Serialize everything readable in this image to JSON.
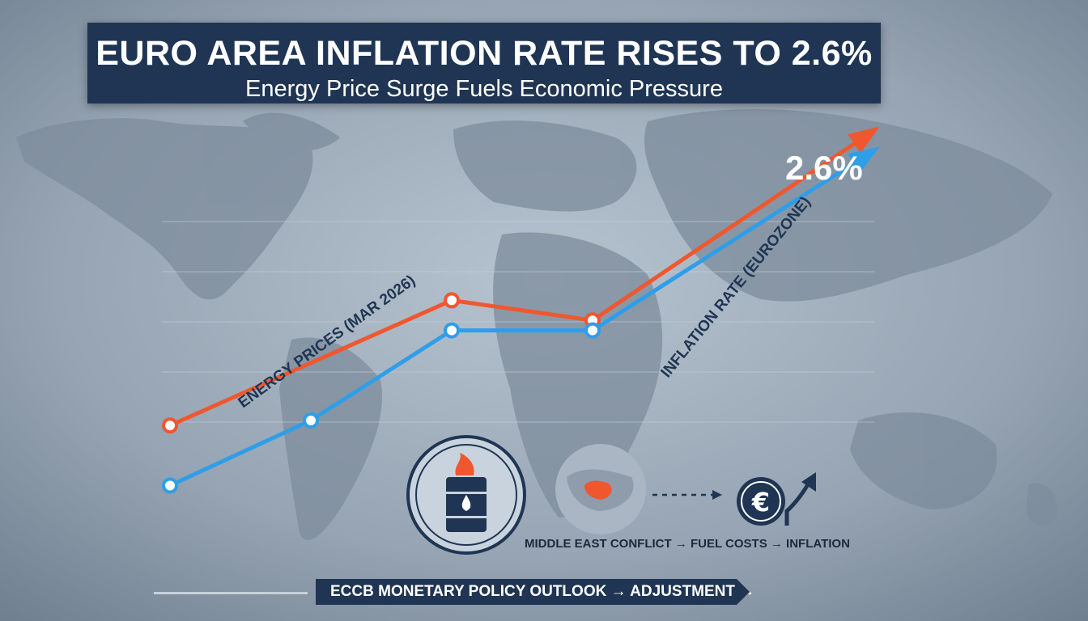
{
  "title": "EURO AREA INFLATION RATE RISES TO 2.6%",
  "subtitle": "Energy Price Surge Fuels Economic Pressure",
  "value_label": "2.6%",
  "causal_chain": "MIDDLE EAST CONFLICT → FUEL COSTS → INFLATION",
  "footer": "ECCB MONETARY POLICY OUTLOOK → ADJUSTMENT →",
  "icons": {
    "barrel": "oil-barrel-icon",
    "map": "region-map-icon",
    "euro": "euro-icon"
  },
  "colors": {
    "energy": "#f0572e",
    "inflation": "#2f9ee8",
    "panel": "#1f3553"
  },
  "chart_data": {
    "type": "line",
    "x": [
      0,
      1,
      2,
      3,
      4,
      5
    ],
    "grid": true,
    "legend": "inline-labels",
    "series": [
      {
        "name": "ENERGY PRICES (MAR 2026)",
        "color": "#f0572e",
        "values": [
          1.0,
          2.25,
          2.05,
          3.95
        ],
        "x": [
          0,
          2,
          3,
          5
        ]
      },
      {
        "name": "INFLATION RATE (EUROZONE)",
        "color": "#2f9ee8",
        "values": [
          0.4,
          1.05,
          1.95,
          1.95,
          3.75
        ],
        "x": [
          0,
          1,
          2,
          3,
          5
        ]
      }
    ],
    "ylim": [
      0,
      4.2
    ]
  }
}
